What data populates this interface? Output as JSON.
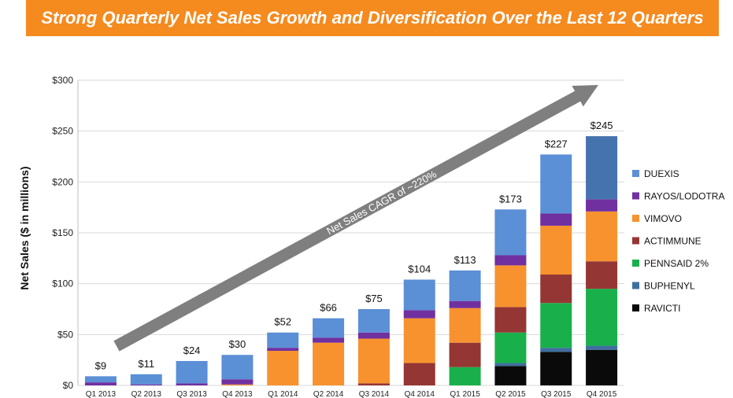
{
  "header": {
    "title": "Strong Quarterly Net Sales Growth and Diversification Over the Last 12 Quarters"
  },
  "chart_data": {
    "type": "bar",
    "stacked": true,
    "title": "Strong Quarterly Net Sales Growth and Diversification Over the Last 12 Quarters",
    "ylabel": "Net Sales ($ in millions)",
    "ylim": [
      0,
      300
    ],
    "yticks": [
      "$0",
      "$50",
      "$100",
      "$150",
      "$200",
      "$250",
      "$300"
    ],
    "grid": true,
    "legend_position": "right",
    "categories": [
      "Q1 2013",
      "Q2 2013",
      "Q3 2013",
      "Q4 2013",
      "Q1 2014",
      "Q2 2014",
      "Q3 2014",
      "Q4 2014",
      "Q1 2015",
      "Q2 2015",
      "Q3 2015",
      "Q4 2015"
    ],
    "totals": [
      "$9",
      "$11",
      "$24",
      "$30",
      "$52",
      "$66",
      "$75",
      "$104",
      "$113",
      "$173",
      "$227",
      "$245"
    ],
    "series": [
      {
        "name": "RAVICTI",
        "color": "#0a0a0a",
        "values": [
          0,
          0,
          0,
          0,
          0,
          0,
          0,
          0,
          0,
          19,
          33,
          35
        ]
      },
      {
        "name": "BUPHENYL",
        "color": "#3f6f9e",
        "values": [
          0,
          0,
          0,
          0,
          0,
          0,
          0,
          0,
          0,
          3,
          4,
          4
        ]
      },
      {
        "name": "PENNSAID 2%",
        "color": "#19b04b",
        "values": [
          0,
          0,
          0,
          0,
          0,
          0,
          0,
          0,
          18,
          30,
          44,
          56
        ]
      },
      {
        "name": "ACTIMMUNE",
        "color": "#943634",
        "values": [
          0,
          0,
          0,
          0,
          0,
          0,
          2,
          22,
          24,
          25,
          28,
          27
        ]
      },
      {
        "name": "VIMOVO",
        "color": "#f7922f",
        "values": [
          0,
          0,
          0,
          1,
          34,
          42,
          44,
          44,
          34,
          41,
          48,
          49
        ]
      },
      {
        "name": "RAYOS/LODOTRA",
        "color": "#7030a0",
        "values": [
          3,
          1,
          2,
          5,
          3,
          5,
          6,
          8,
          7,
          10,
          12,
          12
        ]
      },
      {
        "name": "DUEXIS",
        "color": "#5b8fd6",
        "values": [
          6,
          10,
          22,
          24,
          15,
          19,
          23,
          30,
          30,
          45,
          58,
          0
        ]
      },
      {
        "name": "",
        "color": "#4573ad",
        "values": [
          0,
          0,
          0,
          0,
          0,
          0,
          0,
          0,
          0,
          0,
          0,
          62
        ]
      }
    ],
    "legend": [
      "DUEXIS",
      "RAYOS/LODOTRA",
      "VIMOVO",
      "ACTIMMUNE",
      "PENNSAID 2%",
      "BUPHENYL",
      "RAVICTI"
    ],
    "annotation": "Net Sales CAGR of ~220%",
    "arrow_color": "#7f7f7f"
  }
}
